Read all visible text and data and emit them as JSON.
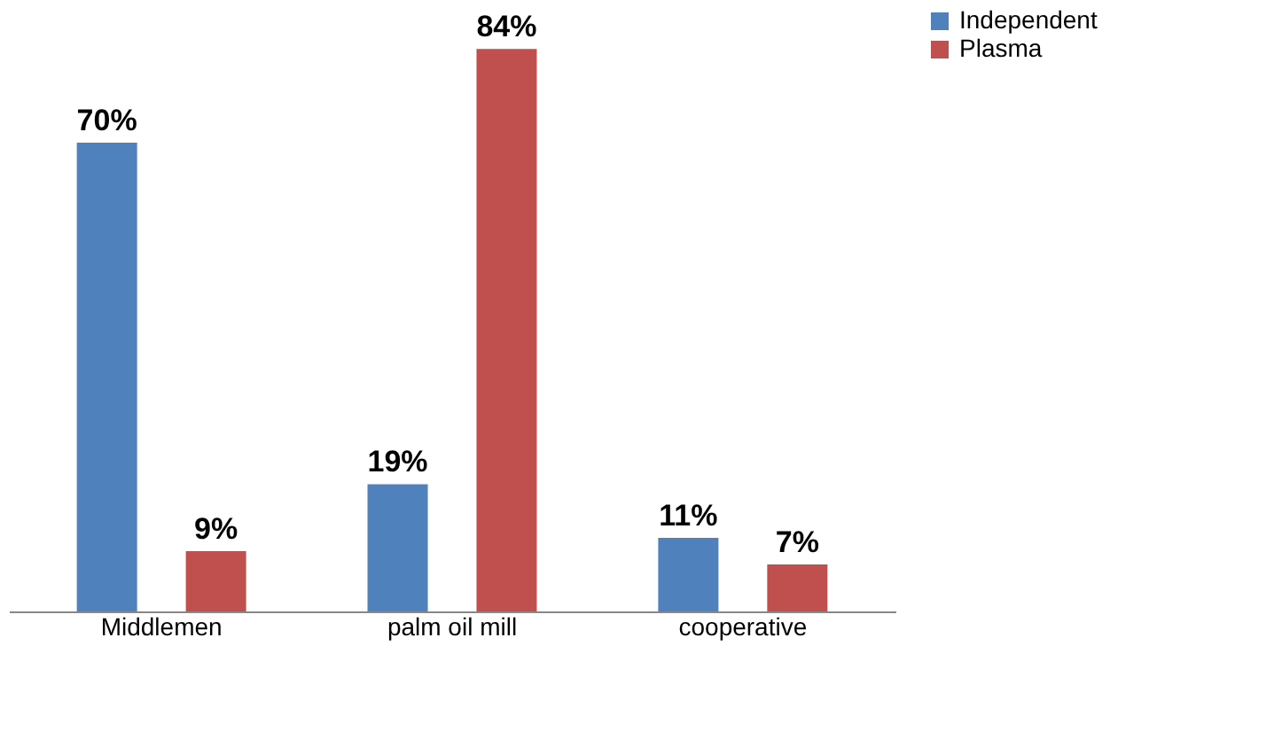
{
  "chart_data": {
    "type": "bar",
    "categories": [
      "Middlemen",
      "palm oil mill",
      "cooperative"
    ],
    "series": [
      {
        "name": "Independent",
        "color": "#4f81bd",
        "values": [
          70,
          19,
          11
        ],
        "value_labels": [
          "70%",
          "19%",
          "11%"
        ]
      },
      {
        "name": "Plasma",
        "color": "#c0504d",
        "values": [
          9,
          84,
          7
        ],
        "value_labels": [
          "9%",
          "84%",
          "7%"
        ]
      }
    ],
    "legend": "right"
  }
}
